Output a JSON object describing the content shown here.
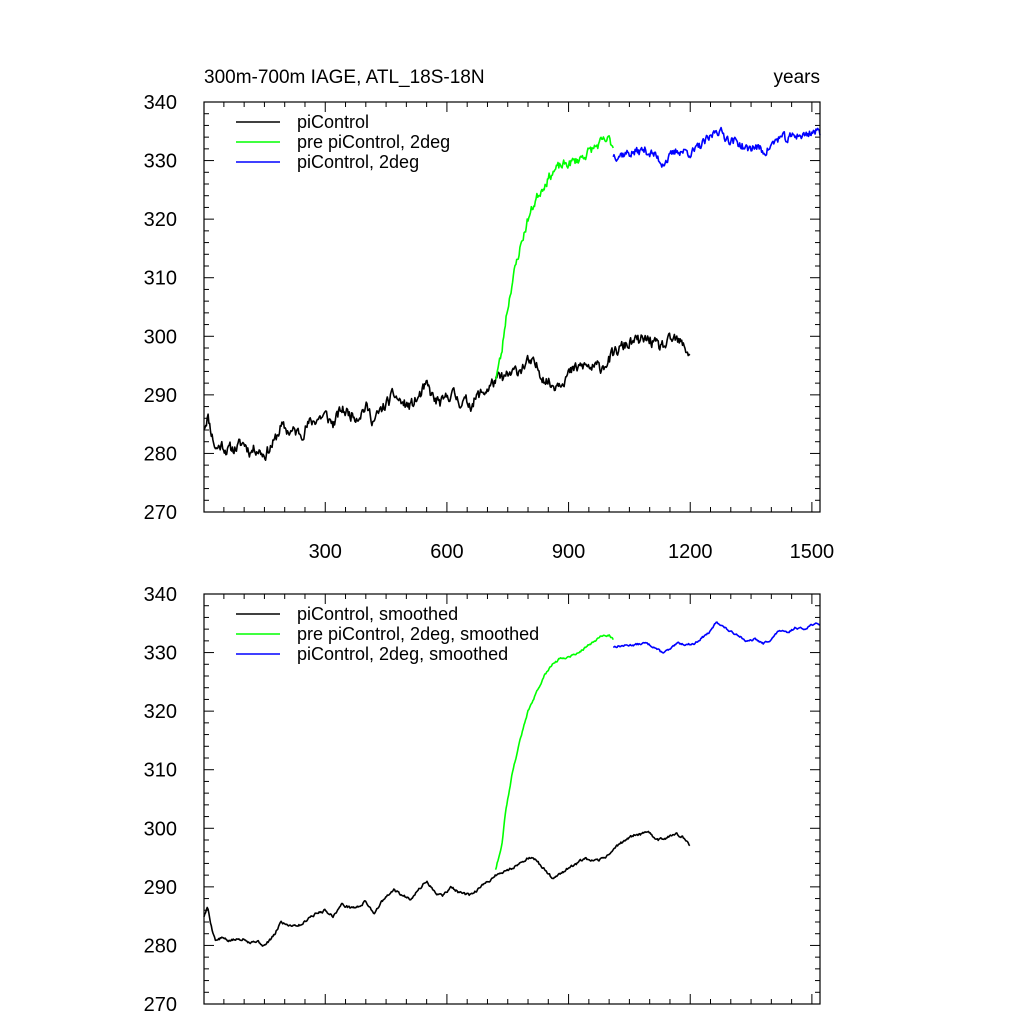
{
  "chart_data": [
    {
      "type": "line",
      "title": "300m-700m IAGE, ATL_18S-18N",
      "right_title": "years",
      "xlim": [
        1,
        1520
      ],
      "ylim": [
        270,
        340
      ],
      "xticks": [
        300,
        600,
        900,
        1200,
        1500
      ],
      "x_tick_labels": [
        "300",
        "600",
        "900",
        "1200",
        "1500"
      ],
      "yticks": [
        270,
        280,
        290,
        300,
        310,
        320,
        330,
        340
      ],
      "y_tick_labels": [
        "270",
        "280",
        "290",
        "300",
        "310",
        "320",
        "330",
        "340"
      ],
      "legend_position": "top-left",
      "series": [
        {
          "name": "piControl",
          "color": "#000000",
          "noise": 0.9,
          "seed": 11,
          "points": [
            [
              1,
              284.5
            ],
            [
              10,
              286.5
            ],
            [
              20,
              283.5
            ],
            [
              30,
              280.8
            ],
            [
              45,
              281.5
            ],
            [
              60,
              280.5
            ],
            [
              80,
              281
            ],
            [
              100,
              281.8
            ],
            [
              115,
              280.4
            ],
            [
              130,
              281
            ],
            [
              150,
              279.8
            ],
            [
              175,
              282
            ],
            [
              190,
              284.5
            ],
            [
              210,
              283.8
            ],
            [
              240,
              283.5
            ],
            [
              260,
              285
            ],
            [
              280,
              286
            ],
            [
              300,
              286.5
            ],
            [
              320,
              285
            ],
            [
              340,
              287.5
            ],
            [
              360,
              286.8
            ],
            [
              380,
              286.5
            ],
            [
              400,
              288
            ],
            [
              420,
              285.5
            ],
            [
              440,
              287.5
            ],
            [
              470,
              290
            ],
            [
              490,
              288.5
            ],
            [
              510,
              288
            ],
            [
              530,
              289.5
            ],
            [
              550,
              291.5
            ],
            [
              570,
              289
            ],
            [
              590,
              288.5
            ],
            [
              610,
              290.5
            ],
            [
              630,
              289
            ],
            [
              660,
              288.5
            ],
            [
              680,
              290
            ],
            [
              700,
              291
            ],
            [
              720,
              292.5
            ],
            [
              740,
              292.8
            ],
            [
              760,
              293.5
            ],
            [
              780,
              294.5
            ],
            [
              800,
              295.5
            ],
            [
              820,
              294.8
            ],
            [
              840,
              293
            ],
            [
              860,
              291.5
            ],
            [
              880,
              292.5
            ],
            [
              900,
              293.5
            ],
            [
              920,
              294.5
            ],
            [
              940,
              295
            ],
            [
              960,
              294.5
            ],
            [
              980,
              294.8
            ],
            [
              1000,
              296
            ],
            [
              1020,
              297.5
            ],
            [
              1040,
              298.5
            ],
            [
              1060,
              299
            ],
            [
              1080,
              299.2
            ],
            [
              1100,
              299.5
            ],
            [
              1120,
              298
            ],
            [
              1140,
              298.5
            ],
            [
              1160,
              299.5
            ],
            [
              1180,
              298.5
            ],
            [
              1200,
              297
            ]
          ]
        },
        {
          "name": "pre piControl, 2deg",
          "color": "#00ff00",
          "noise": 0.7,
          "seed": 23,
          "points": [
            [
              720,
              293
            ],
            [
              735,
              297
            ],
            [
              745,
              303
            ],
            [
              760,
              309
            ],
            [
              780,
              315
            ],
            [
              800,
              320
            ],
            [
              820,
              323.5
            ],
            [
              840,
              326
            ],
            [
              860,
              328
            ],
            [
              880,
              329
            ],
            [
              900,
              329.5
            ],
            [
              920,
              330
            ],
            [
              940,
              331
            ],
            [
              960,
              332
            ],
            [
              980,
              333
            ],
            [
              1000,
              333.5
            ],
            [
              1010,
              332.5
            ]
          ]
        },
        {
          "name": "piControl, 2deg",
          "color": "#0000ff",
          "noise": 0.7,
          "seed": 37,
          "points": [
            [
              1010,
              331
            ],
            [
              1040,
              331.2
            ],
            [
              1070,
              331.5
            ],
            [
              1090,
              331.8
            ],
            [
              1110,
              331
            ],
            [
              1130,
              329.7
            ],
            [
              1150,
              330.5
            ],
            [
              1170,
              331.8
            ],
            [
              1190,
              331.5
            ],
            [
              1210,
              331.5
            ],
            [
              1230,
              332.8
            ],
            [
              1250,
              333.8
            ],
            [
              1265,
              335.5
            ],
            [
              1280,
              334.5
            ],
            [
              1300,
              333.5
            ],
            [
              1320,
              333
            ],
            [
              1340,
              331.8
            ],
            [
              1360,
              332.5
            ],
            [
              1380,
              331.5
            ],
            [
              1400,
              332.5
            ],
            [
              1420,
              334
            ],
            [
              1440,
              333.5
            ],
            [
              1460,
              334.5
            ],
            [
              1480,
              334.2
            ],
            [
              1500,
              335
            ],
            [
              1520,
              334.8
            ]
          ]
        }
      ]
    },
    {
      "type": "line",
      "title": "",
      "xlim": [
        1,
        1520
      ],
      "ylim": [
        270,
        340
      ],
      "xticks": [
        300,
        600,
        900,
        1200,
        1500
      ],
      "yticks": [
        270,
        280,
        290,
        300,
        310,
        320,
        330,
        340
      ],
      "y_tick_labels": [
        "270",
        "280",
        "290",
        "300",
        "310",
        "320",
        "330",
        "340"
      ],
      "legend_position": "top-left",
      "series": [
        {
          "name": "piControl, smoothed",
          "color": "#000000",
          "noise": 0.2,
          "seed": 5,
          "points": [
            [
              1,
              285
            ],
            [
              10,
              286.5
            ],
            [
              20,
              283
            ],
            [
              30,
              280.8
            ],
            [
              45,
              281.3
            ],
            [
              60,
              280.8
            ],
            [
              80,
              281
            ],
            [
              100,
              281.2
            ],
            [
              115,
              280.5
            ],
            [
              130,
              280.8
            ],
            [
              150,
              279.9
            ],
            [
              175,
              281.8
            ],
            [
              190,
              284
            ],
            [
              210,
              283.5
            ],
            [
              240,
              283.5
            ],
            [
              260,
              284.8
            ],
            [
              280,
              285.5
            ],
            [
              300,
              286
            ],
            [
              320,
              285
            ],
            [
              340,
              287
            ],
            [
              360,
              286.5
            ],
            [
              380,
              286.5
            ],
            [
              400,
              287.5
            ],
            [
              420,
              285.5
            ],
            [
              440,
              287.5
            ],
            [
              470,
              289.5
            ],
            [
              490,
              288.5
            ],
            [
              510,
              288
            ],
            [
              530,
              289.5
            ],
            [
              550,
              291
            ],
            [
              570,
              289
            ],
            [
              590,
              288.5
            ],
            [
              610,
              290
            ],
            [
              630,
              289
            ],
            [
              660,
              288.5
            ],
            [
              680,
              289.8
            ],
            [
              700,
              290.8
            ],
            [
              720,
              292
            ],
            [
              740,
              292.5
            ],
            [
              760,
              293.2
            ],
            [
              780,
              294
            ],
            [
              800,
              295
            ],
            [
              820,
              294.5
            ],
            [
              840,
              293
            ],
            [
              860,
              291.5
            ],
            [
              880,
              292.3
            ],
            [
              900,
              293.2
            ],
            [
              920,
              294
            ],
            [
              940,
              294.8
            ],
            [
              960,
              294.3
            ],
            [
              980,
              294.6
            ],
            [
              1000,
              295.6
            ],
            [
              1020,
              297
            ],
            [
              1040,
              298
            ],
            [
              1060,
              298.8
            ],
            [
              1080,
              299
            ],
            [
              1100,
              299.3
            ],
            [
              1120,
              298
            ],
            [
              1140,
              298.4
            ],
            [
              1160,
              299.2
            ],
            [
              1180,
              298.5
            ],
            [
              1200,
              297
            ]
          ]
        },
        {
          "name": "pre piControl, 2deg, smoothed",
          "color": "#00ff00",
          "noise": 0.15,
          "seed": 9,
          "points": [
            [
              720,
              293
            ],
            [
              735,
              297
            ],
            [
              745,
              303
            ],
            [
              760,
              309
            ],
            [
              780,
              315
            ],
            [
              800,
              320
            ],
            [
              820,
              323
            ],
            [
              840,
              326
            ],
            [
              860,
              328
            ],
            [
              880,
              329
            ],
            [
              900,
              329.3
            ],
            [
              920,
              329.8
            ],
            [
              940,
              330.8
            ],
            [
              960,
              331.8
            ],
            [
              980,
              332.8
            ],
            [
              1000,
              333
            ],
            [
              1010,
              332.3
            ]
          ]
        },
        {
          "name": "piControl, 2deg, smoothed",
          "color": "#0000ff",
          "noise": 0.15,
          "seed": 13,
          "points": [
            [
              1010,
              331
            ],
            [
              1040,
              331.2
            ],
            [
              1070,
              331.4
            ],
            [
              1090,
              331.6
            ],
            [
              1110,
              331
            ],
            [
              1130,
              330
            ],
            [
              1150,
              330.5
            ],
            [
              1170,
              331.6
            ],
            [
              1190,
              331.4
            ],
            [
              1210,
              331.5
            ],
            [
              1230,
              332.6
            ],
            [
              1250,
              333.6
            ],
            [
              1265,
              335.3
            ],
            [
              1280,
              334.5
            ],
            [
              1300,
              333.5
            ],
            [
              1320,
              333
            ],
            [
              1340,
              331.8
            ],
            [
              1360,
              332.3
            ],
            [
              1380,
              331.5
            ],
            [
              1400,
              332.3
            ],
            [
              1420,
              333.8
            ],
            [
              1440,
              333.3
            ],
            [
              1460,
              334.3
            ],
            [
              1480,
              334
            ],
            [
              1500,
              334.8
            ],
            [
              1520,
              334.8
            ]
          ]
        }
      ]
    }
  ]
}
